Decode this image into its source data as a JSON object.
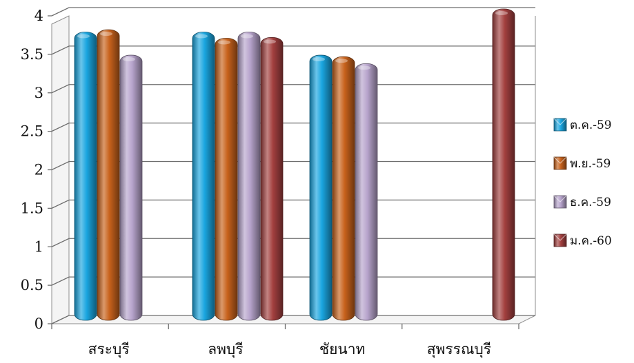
{
  "chart_data": {
    "type": "bar",
    "title": "",
    "xlabel": "",
    "ylabel": "",
    "ylim": [
      0,
      4
    ],
    "yticks": [
      "0",
      "0.5",
      "1",
      "1.5",
      "2",
      "2.5",
      "3",
      "3.5",
      "4"
    ],
    "grid": true,
    "legend_position": "right",
    "categories": [
      "สระบุรี",
      "ลพบุรี",
      "ชัยนาท",
      "สุพรรณบุรี"
    ],
    "series": [
      {
        "name": "ต.ค.-59",
        "color": "#1aa6e0",
        "values": [
          3.7,
          3.7,
          3.4,
          null
        ]
      },
      {
        "name": "พ.ย.-59",
        "color": "#c8621c",
        "values": [
          3.73,
          3.62,
          3.38,
          null
        ]
      },
      {
        "name": "ธ.ค.-59",
        "color": "#b7a4cc",
        "values": [
          3.4,
          3.7,
          3.29,
          null
        ]
      },
      {
        "name": "ม.ค.-60",
        "color": "#a3403f",
        "values": [
          null,
          3.63,
          null,
          4.0
        ]
      }
    ]
  }
}
